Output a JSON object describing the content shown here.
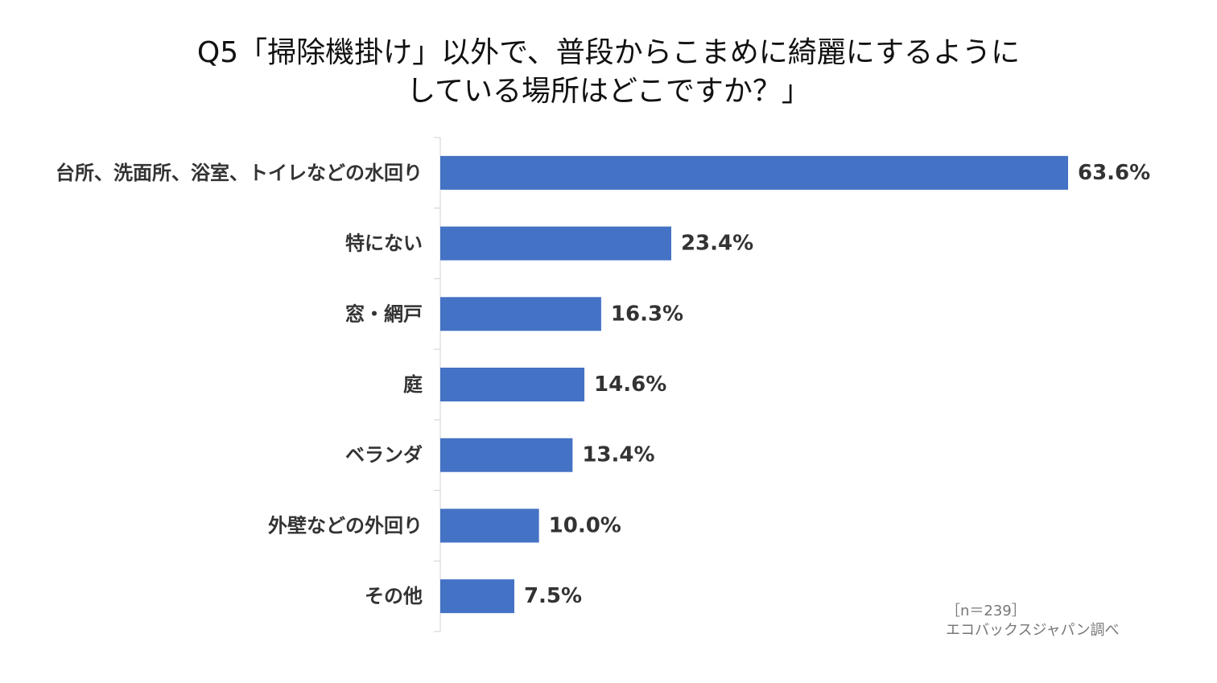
{
  "chart_data": {
    "type": "bar",
    "orientation": "horizontal",
    "title_lines": [
      "Q5「掃除機掛け」以外で、普段からこまめに綺麗にするように",
      "している場所はどこですか？」"
    ],
    "categories": [
      "台所、洗面所、浴室、トイレなどの水回り",
      "特にない",
      "窓・網戸",
      "庭",
      "ベランダ",
      "外壁などの外回り",
      "その他"
    ],
    "values": [
      63.6,
      23.4,
      16.3,
      14.6,
      13.4,
      10.0,
      7.5
    ],
    "value_labels": [
      "63.6%",
      "23.4%",
      "16.3%",
      "14.6%",
      "13.4%",
      "10.0%",
      "7.5%"
    ],
    "xlim": [
      0,
      70
    ],
    "grid": false,
    "legend": "none",
    "bar_color": "#4472C4"
  },
  "footnote": {
    "sample": "［n＝239］",
    "source": "エコバックスジャパン調べ"
  }
}
